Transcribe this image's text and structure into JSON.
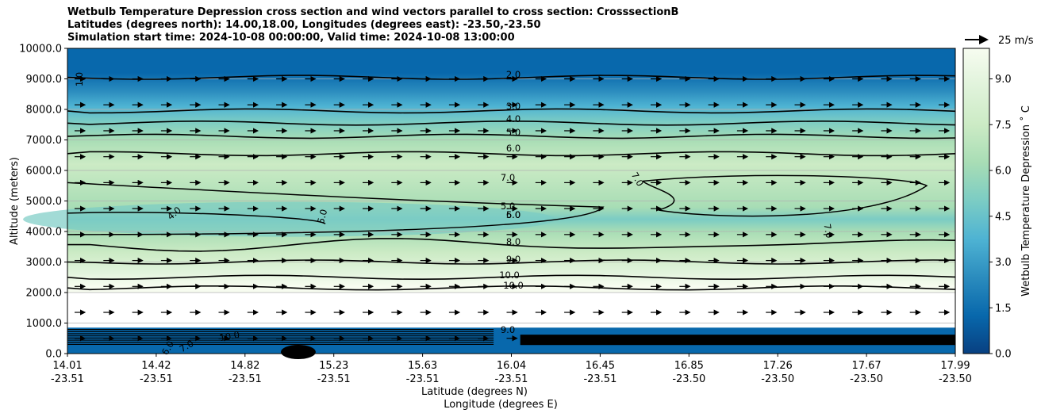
{
  "title": {
    "line1": "Wetbulb Temperature Depression cross section and wind vectors parallel to cross section: CrosssectionB",
    "line2": "Latitudes (degrees north): 14.00,18.00, Longitudes (degrees east): -23.50,-23.50",
    "line3": "Simulation start time: 2024-10-08 00:00:00, Valid time: 2024-10-08 13:00:00"
  },
  "colors": {
    "colormap": [
      "#084081",
      "#0868ac",
      "#2b8cbe",
      "#4eb3d3",
      "#7bccc4",
      "#a8ddb5",
      "#ccebc5",
      "#e0f3db",
      "#f7fcf0"
    ],
    "contour": "#000000",
    "arrow": "#000000",
    "grid": "#b0b0b0"
  },
  "chart_data": {
    "type": "heatmap",
    "xlabel": "Latitude (degrees N)",
    "xlabel2": "Longitude (degrees E)",
    "ylabel": "Altitude (meters)",
    "ylim": [
      0,
      10000
    ],
    "yticks": [
      "0.0",
      "1000.0",
      "2000.0",
      "3000.0",
      "4000.0",
      "5000.0",
      "6000.0",
      "7000.0",
      "8000.0",
      "9000.0",
      "10000.0"
    ],
    "xticks_lat": [
      "14.01",
      "14.42",
      "14.82",
      "15.23",
      "15.63",
      "16.04",
      "16.45",
      "16.85",
      "17.26",
      "17.67",
      "17.99"
    ],
    "xticks_lon": [
      "-23.51",
      "-23.51",
      "-23.51",
      "-23.51",
      "-23.51",
      "-23.51",
      "-23.51",
      "-23.50",
      "-23.50",
      "-23.50",
      "-23.50"
    ],
    "grid": "horizontal",
    "colorbar": {
      "label": "Wetbulb Temperature Depression ˚ C",
      "range": [
        0,
        10
      ],
      "ticks": [
        "0.0",
        "1.5",
        "3.0",
        "4.5",
        "6.0",
        "7.5",
        "9.0"
      ]
    },
    "wind_key": {
      "label": "25 m/s",
      "speed": 25
    },
    "contour_labels": [
      "1.0",
      "2.0",
      "3.0",
      "4.0",
      "5.0",
      "6.0",
      "7.0",
      "7.0",
      "4.0",
      "5.0",
      "5.0",
      "5.0",
      "6.0",
      "7.0",
      "8.0",
      "9.0",
      "10.0",
      "10.0",
      "9.0",
      "7.0",
      "6.0",
      "10.0"
    ],
    "contour_levels_altitude_m": [
      {
        "level": 2.0,
        "alt": 9050
      },
      {
        "level": 3.0,
        "alt": 7950
      },
      {
        "level": 4.0,
        "alt": 7550
      },
      {
        "level": 5.0,
        "alt": 7120
      },
      {
        "level": 6.0,
        "alt": 6550
      },
      {
        "level": 7.0,
        "alt": 3570
      },
      {
        "level": 8.0,
        "alt": 3000
      },
      {
        "level": 9.0,
        "alt": 2500
      },
      {
        "level": 10.0,
        "alt": 2150
      }
    ]
  }
}
